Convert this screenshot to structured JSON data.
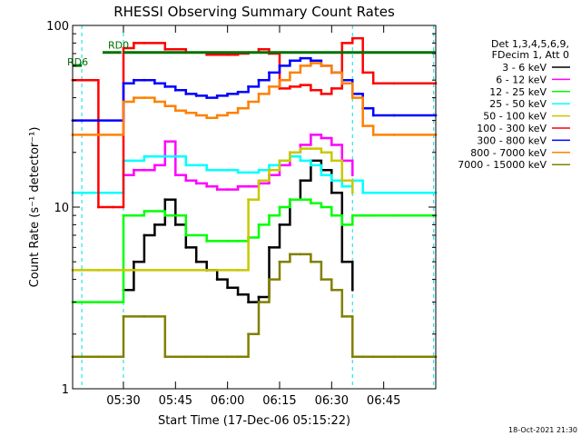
{
  "chart_data": {
    "type": "line",
    "title": "RHESSI Observing Summary Count Rates",
    "xlabel": "Start Time (17-Dec-06 05:15:22)",
    "ylabel": "Count Rate (s⁻¹ detector⁻¹)",
    "yscale": "log",
    "ylim": [
      1,
      100
    ],
    "xlim": [
      5.256,
      7.0
    ],
    "x_ticks": [
      {
        "x": 5.5,
        "label": "05:30"
      },
      {
        "x": 5.75,
        "label": "05:45"
      },
      {
        "x": 6.0,
        "label": "06:00"
      },
      {
        "x": 6.25,
        "label": "06:15"
      },
      {
        "x": 6.5,
        "label": "06:30"
      },
      {
        "x": 6.75,
        "label": "06:45"
      }
    ],
    "y_ticks": [
      {
        "y": 1,
        "label": "1"
      },
      {
        "y": 10,
        "label": "10"
      },
      {
        "y": 100,
        "label": "100"
      }
    ],
    "legend": {
      "placement": "right",
      "header": [
        "Det 1,3,4,5,6,9,",
        "FDecim 1, Att 0"
      ]
    },
    "markers": {
      "rd0": {
        "label": "RD0",
        "x_start": 5.4,
        "x_end": 5.49,
        "y": 71
      },
      "rd6": {
        "label": "RD6",
        "x_start": 5.256,
        "x_end": 5.3,
        "y": 63
      },
      "attenuator_bar": {
        "x_start": 5.5,
        "x_end": 7.0,
        "y": 71,
        "color": "#007000"
      },
      "dashed_lines": [
        5.3,
        5.5,
        6.6,
        6.99
      ]
    },
    "series": [
      {
        "name": "3 - 6 keV",
        "color": "#000000",
        "x": [
          5.256,
          5.3,
          5.38,
          5.45,
          5.5,
          5.55,
          5.6,
          5.65,
          5.7,
          5.75,
          5.8,
          5.85,
          5.9,
          5.95,
          6.0,
          6.05,
          6.1,
          6.15,
          6.2,
          6.25,
          6.3,
          6.35,
          6.4,
          6.45,
          6.5,
          6.55,
          6.6,
          6.62
        ],
        "y": [
          null,
          null,
          null,
          null,
          3.5,
          5,
          7,
          8,
          11,
          8,
          6,
          5,
          4.5,
          4,
          3.6,
          3.3,
          3.0,
          3.2,
          6,
          8,
          11,
          14,
          18,
          16,
          12,
          5,
          3.5,
          null
        ]
      },
      {
        "name": "6 - 12 keV",
        "color": "#ff00ff",
        "x": [
          5.256,
          5.5,
          5.55,
          5.6,
          5.65,
          5.7,
          5.75,
          5.8,
          5.85,
          5.9,
          5.95,
          6.0,
          6.05,
          6.1,
          6.15,
          6.2,
          6.25,
          6.3,
          6.35,
          6.4,
          6.45,
          6.5,
          6.55,
          6.6
        ],
        "y": [
          null,
          15,
          16,
          16,
          17,
          23,
          15,
          14,
          13.5,
          13,
          12.5,
          12.5,
          13,
          13,
          13.5,
          15,
          17,
          20,
          22,
          25,
          24,
          22,
          18,
          15
        ]
      },
      {
        "name": "12 - 25 keV",
        "color": "#00ff00",
        "x": [
          5.256,
          5.3,
          5.38,
          5.5,
          5.6,
          5.7,
          5.8,
          5.9,
          6.0,
          6.05,
          6.1,
          6.15,
          6.2,
          6.25,
          6.3,
          6.35,
          6.4,
          6.45,
          6.5,
          6.55,
          6.6,
          6.65,
          6.7,
          6.8,
          7.0
        ],
        "y": [
          3,
          3,
          3,
          9,
          9.5,
          9,
          7,
          6.5,
          6.5,
          6.5,
          6.8,
          8,
          9,
          10,
          11,
          11,
          10.5,
          10,
          9,
          8,
          9,
          9,
          9,
          9,
          9
        ]
      },
      {
        "name": "25 - 50 keV",
        "color": "#00ffff",
        "x": [
          5.256,
          5.3,
          5.38,
          5.5,
          5.6,
          5.7,
          5.8,
          5.9,
          6.0,
          6.05,
          6.1,
          6.15,
          6.2,
          6.25,
          6.3,
          6.35,
          6.4,
          6.45,
          6.5,
          6.55,
          6.6,
          6.65,
          6.7,
          6.8,
          7.0
        ],
        "y": [
          12,
          12,
          12,
          18,
          19,
          19,
          17,
          16,
          16,
          15.5,
          15.5,
          16,
          17,
          18,
          19,
          18,
          17,
          15,
          14,
          13,
          14,
          12,
          12,
          12,
          12
        ]
      },
      {
        "name": "50 - 100 keV",
        "color": "#c8c800",
        "x": [
          5.256,
          5.3,
          5.38,
          5.5,
          6.05,
          6.1,
          6.15,
          6.2,
          6.25,
          6.3,
          6.35,
          6.4,
          6.45,
          6.5,
          6.55,
          6.6
        ],
        "y": [
          4.5,
          4.5,
          4.5,
          4.5,
          4.5,
          11,
          14,
          16,
          18,
          20,
          21,
          21,
          20,
          18,
          14,
          12
        ]
      },
      {
        "name": "100 - 300 keV",
        "color": "#ff0000",
        "x": [
          5.256,
          5.3,
          5.38,
          5.45,
          5.5,
          5.55,
          5.6,
          5.7,
          5.8,
          5.9,
          6.0,
          6.05,
          6.1,
          6.15,
          6.2,
          6.25,
          6.3,
          6.35,
          6.4,
          6.45,
          6.5,
          6.55,
          6.6,
          6.65,
          6.7,
          6.8,
          7.0
        ],
        "y": [
          50,
          50,
          10,
          10,
          75,
          80,
          80,
          74,
          71,
          69,
          69,
          70,
          71,
          74,
          70,
          45,
          46,
          47,
          44,
          42,
          45,
          80,
          85,
          55,
          48,
          48,
          48
        ]
      },
      {
        "name": "300 - 800 keV",
        "color": "#0000ff",
        "x": [
          5.256,
          5.3,
          5.38,
          5.5,
          5.55,
          5.6,
          5.65,
          5.7,
          5.75,
          5.8,
          5.85,
          5.9,
          5.95,
          6.0,
          6.05,
          6.1,
          6.15,
          6.2,
          6.25,
          6.3,
          6.35,
          6.4,
          6.45,
          6.5,
          6.55,
          6.6,
          6.65,
          6.7,
          6.8,
          7.0
        ],
        "y": [
          30,
          30,
          30,
          48,
          50,
          50,
          48,
          46,
          44,
          42,
          41,
          40,
          41,
          42,
          43,
          46,
          50,
          55,
          60,
          64,
          66,
          64,
          60,
          55,
          50,
          42,
          35,
          32,
          32,
          32
        ]
      },
      {
        "name": "800 - 7000 keV",
        "color": "#ff8000",
        "x": [
          5.256,
          5.3,
          5.38,
          5.5,
          5.55,
          5.6,
          5.65,
          5.7,
          5.75,
          5.8,
          5.85,
          5.9,
          5.95,
          6.0,
          6.05,
          6.1,
          6.15,
          6.2,
          6.25,
          6.3,
          6.35,
          6.4,
          6.45,
          6.5,
          6.55,
          6.6,
          6.65,
          6.7,
          6.8,
          7.0
        ],
        "y": [
          25,
          25,
          25,
          38,
          40,
          40,
          38,
          36,
          34,
          33,
          32,
          31,
          32,
          33,
          35,
          38,
          42,
          46,
          50,
          55,
          60,
          62,
          60,
          55,
          48,
          40,
          28,
          25,
          25,
          25
        ]
      },
      {
        "name": "7000 - 15000 keV",
        "color": "#808000",
        "x": [
          5.256,
          5.3,
          5.38,
          5.5,
          5.6,
          5.7,
          5.8,
          5.9,
          6.0,
          6.05,
          6.1,
          6.15,
          6.2,
          6.25,
          6.3,
          6.35,
          6.4,
          6.45,
          6.5,
          6.55,
          6.6,
          6.65,
          6.7,
          6.8,
          7.0
        ],
        "y": [
          1.5,
          1.5,
          1.5,
          2.5,
          2.5,
          1.5,
          1.5,
          1.5,
          1.5,
          1.5,
          2,
          3,
          4,
          5,
          5.5,
          5.5,
          5,
          4,
          3.5,
          2.5,
          1.5,
          1.5,
          1.5,
          1.5,
          1.5
        ]
      }
    ]
  },
  "footer": {
    "timestamp": "18-Oct-2021 21:30"
  }
}
